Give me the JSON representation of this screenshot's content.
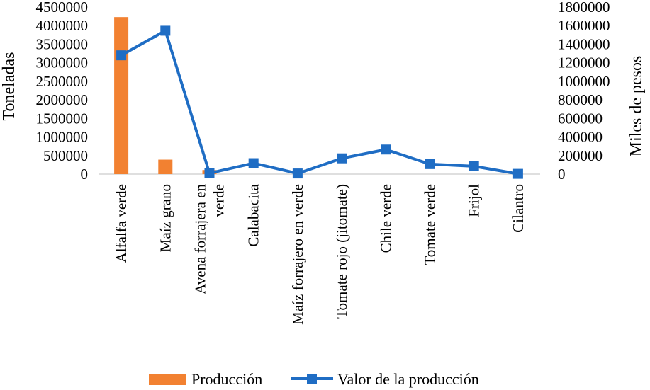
{
  "chart_data": {
    "type": "bar+line",
    "categories": [
      "Alfalfa verde",
      "Maíz grano",
      "Avena forrajera en verde",
      "Calabacita",
      "Maíz forrajero en verde",
      "Tomate rojo (jitomate)",
      "Chile verde",
      "Tomate verde",
      "Frijol",
      "Cilantro"
    ],
    "category_lines": [
      [
        "Alfalfa verde"
      ],
      [
        "Maíz grano"
      ],
      [
        "Avena forrajera en",
        "verde"
      ],
      [
        "Calabacita"
      ],
      [
        "Maíz forrajero en verde"
      ],
      [
        "Tomate rojo (jitomate)"
      ],
      [
        "Chile verde"
      ],
      [
        "Tomate verde"
      ],
      [
        "Frijol"
      ],
      [
        "Cilantro"
      ]
    ],
    "series": [
      {
        "name": "Producción",
        "type": "bar",
        "axis": "left",
        "color": "#F28131",
        "values": [
          4230000,
          390000,
          110000,
          0,
          0,
          0,
          0,
          0,
          0,
          0
        ]
      },
      {
        "name": "Valor de la producción",
        "type": "line",
        "axis": "right",
        "color": "#1F6DC4",
        "values": [
          1280000,
          1545000,
          10000,
          118000,
          7000,
          170000,
          265000,
          108000,
          85000,
          3000
        ]
      }
    ],
    "ylabel": "Toneladas",
    "y2label": "Miles de pesos",
    "ylim": [
      0,
      4500000
    ],
    "y2lim": [
      0,
      1800000
    ],
    "yticks": [
      "0",
      "500000",
      "1000000",
      "1500000",
      "2000000",
      "2500000",
      "3000000",
      "3500000",
      "4000000",
      "4500000"
    ],
    "y2ticks": [
      "0",
      "200000",
      "400000",
      "600000",
      "800000",
      "1000000",
      "1200000",
      "1400000",
      "1600000",
      "1800000"
    ],
    "grid": false,
    "legend_position": "bottom"
  }
}
